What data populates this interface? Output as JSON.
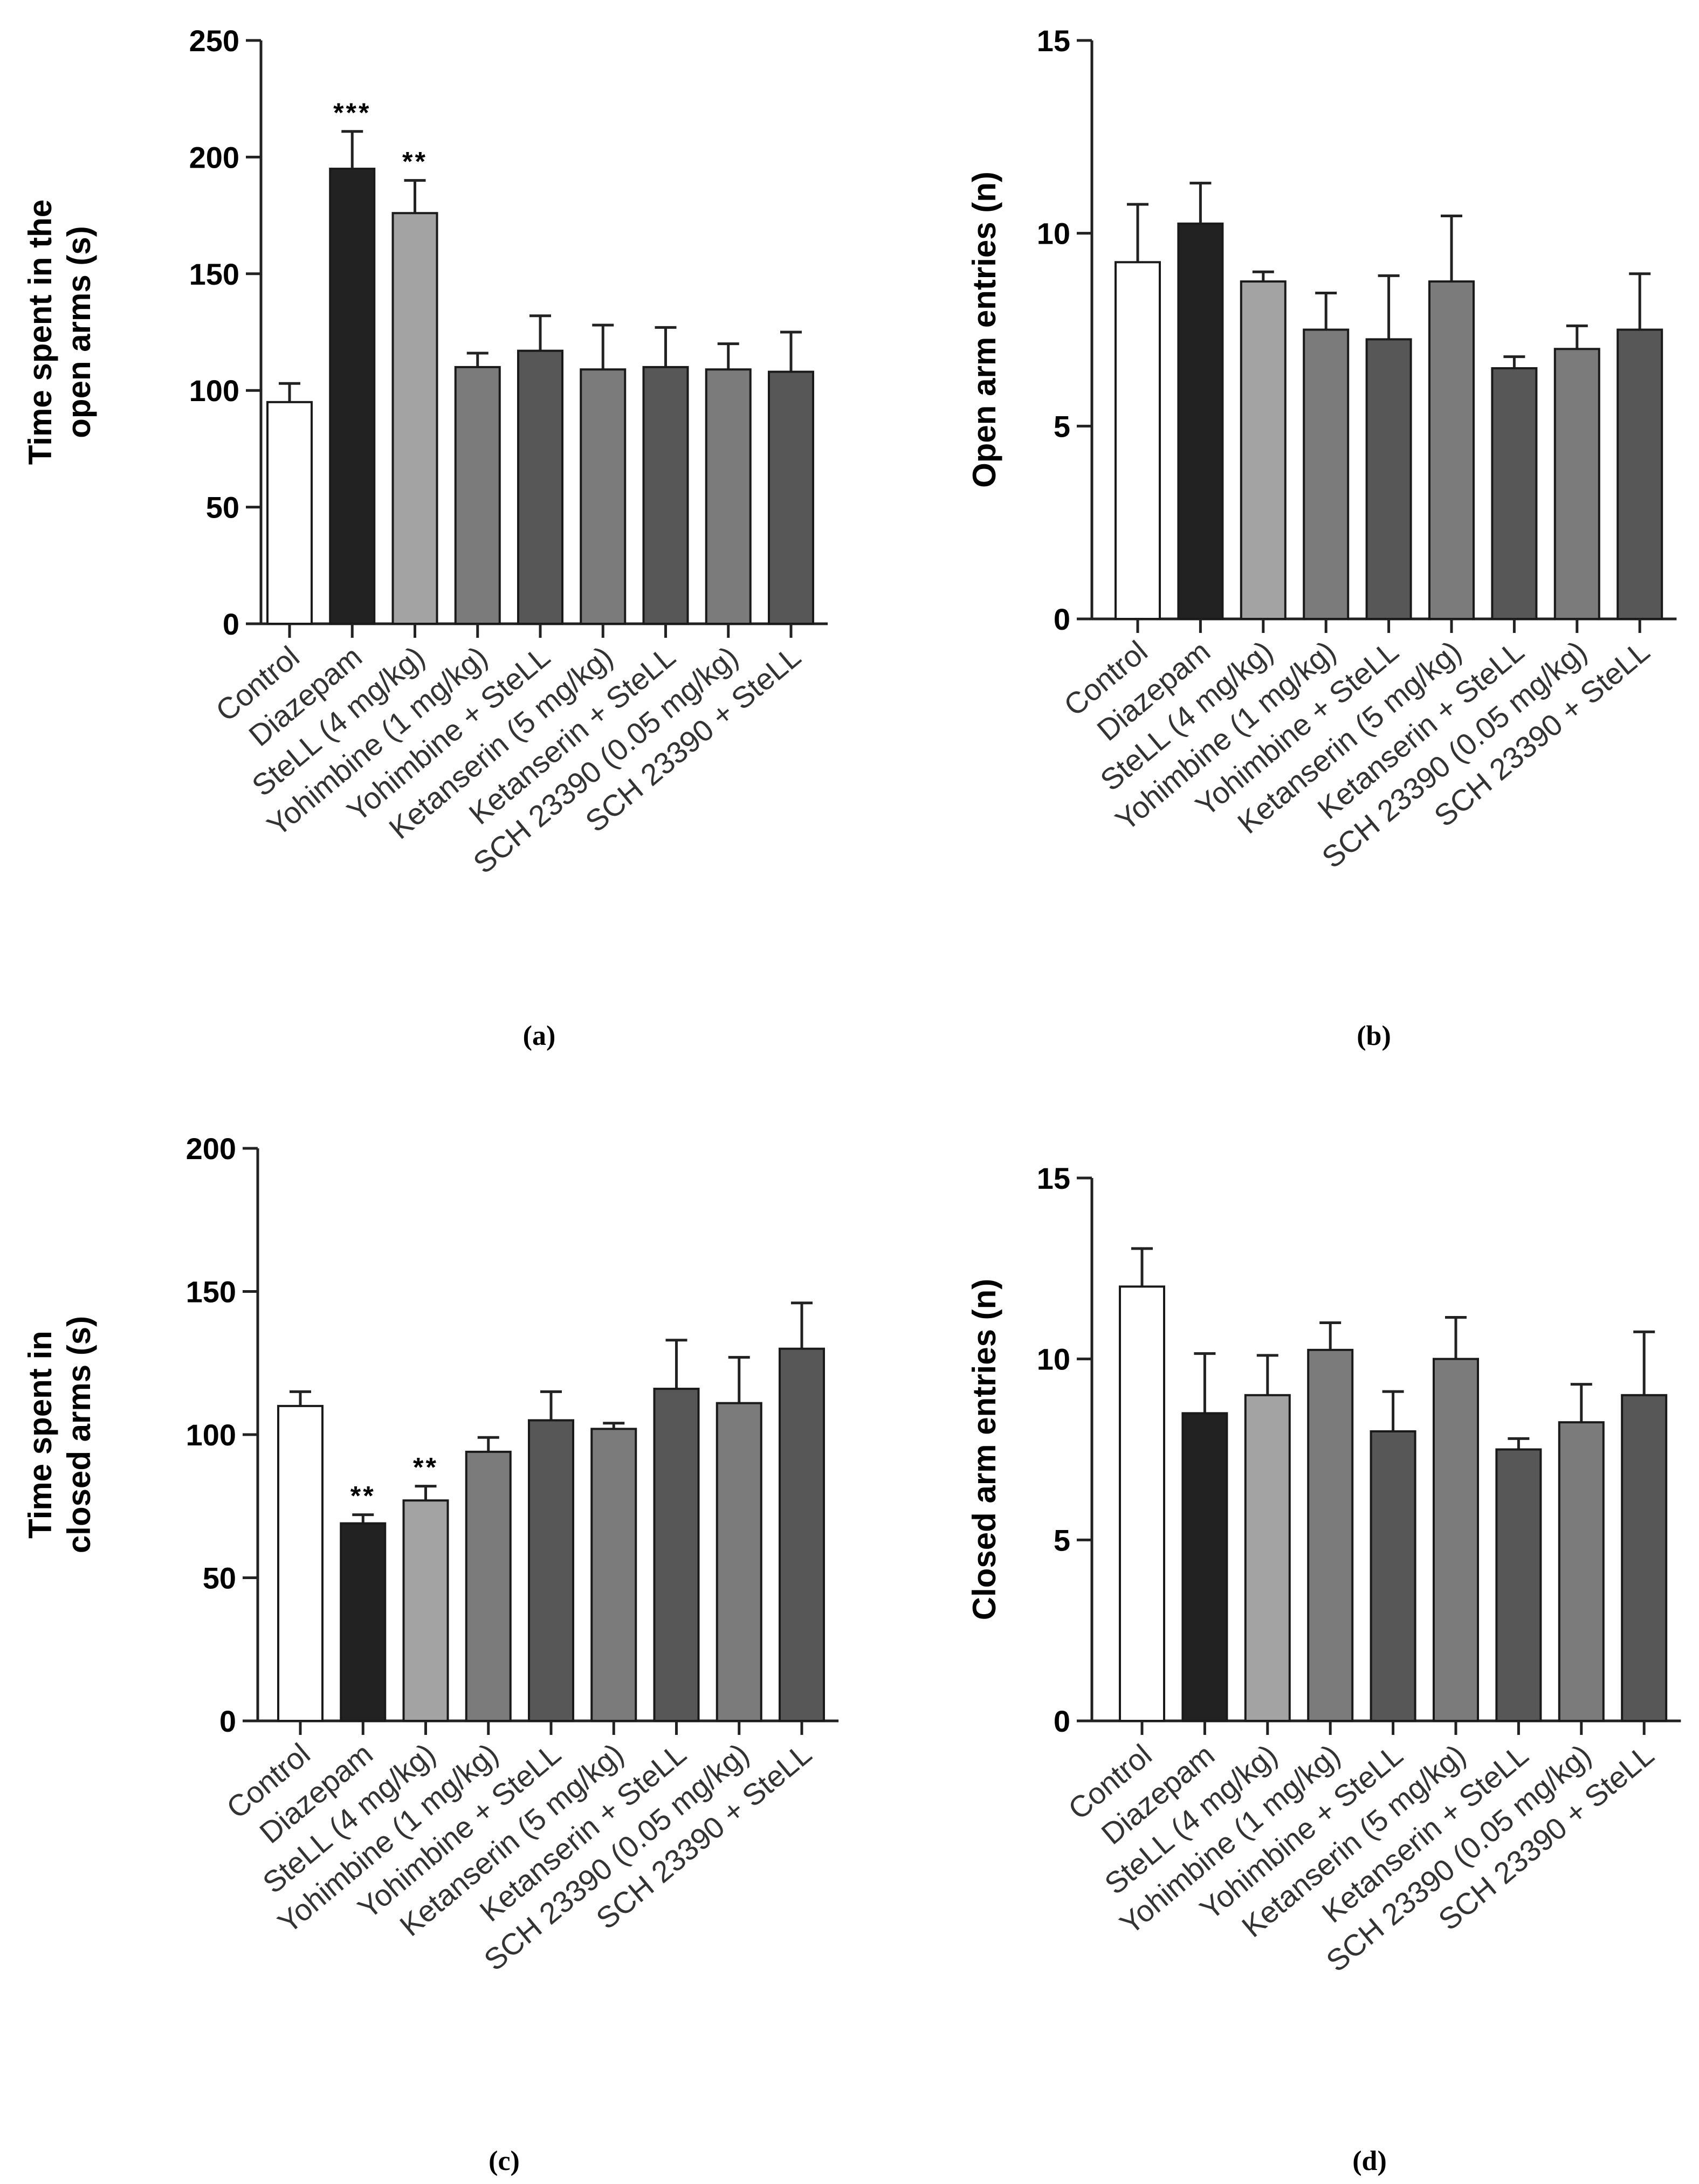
{
  "figure": {
    "background": "#ffffff"
  },
  "categories": [
    "Control",
    "Diazepam",
    "SteLL (4 mg/kg)",
    "Yohimbine (1 mg/kg)",
    "Yohimbine + SteLL",
    "Ketanserin (5 mg/kg)",
    "Ketanserin + SteLL",
    "SCH 23390 (0.05 mg/kg)",
    "SCH 23390 + SteLL"
  ],
  "bar_colors": [
    "#ffffff",
    "#222222",
    "#a3a3a3",
    "#7b7b7b",
    "#575757",
    "#7b7b7b",
    "#575757",
    "#7b7b7b",
    "#575757"
  ],
  "chart_data": [
    {
      "panel": "(a)",
      "type": "bar",
      "ylabel_line1": "Time spent in the",
      "ylabel_line2": "open arms (s)",
      "ylim": [
        0,
        250
      ],
      "yticks": [
        "0",
        "50",
        "100",
        "150",
        "200",
        "250"
      ],
      "values": [
        95,
        195,
        176,
        110,
        117,
        109,
        110,
        109,
        108
      ],
      "errors": [
        8,
        16,
        14,
        6,
        15,
        19,
        17,
        11,
        17
      ],
      "significance": [
        "",
        "***",
        "**",
        "",
        "",
        "",
        "",
        "",
        ""
      ]
    },
    {
      "panel": "(b)",
      "type": "bar",
      "ylabel_line1": "Open arm entries (n)",
      "ylabel_line2": "",
      "ylim": [
        0,
        15
      ],
      "yticks": [
        "0",
        "5",
        "10",
        "15"
      ],
      "values": [
        9.25,
        10.25,
        8.75,
        7.5,
        7.25,
        8.75,
        6.5,
        7.0,
        7.5
      ],
      "errors": [
        1.5,
        1.05,
        0.25,
        0.95,
        1.65,
        1.7,
        0.3,
        0.6,
        1.45
      ],
      "significance": [
        "",
        "",
        "",
        "",
        "",
        "",
        "",
        "",
        ""
      ]
    },
    {
      "panel": "(c)",
      "type": "bar",
      "ylabel_line1": "Time spent in",
      "ylabel_line2": "closed arms (s)",
      "ylim": [
        0,
        200
      ],
      "yticks": [
        "0",
        "50",
        "100",
        "150",
        "200"
      ],
      "values": [
        110,
        69,
        77,
        94,
        105,
        102,
        116,
        111,
        130
      ],
      "errors": [
        5,
        3,
        5,
        5,
        10,
        2,
        17,
        16,
        16
      ],
      "significance": [
        "",
        "**",
        "**",
        "",
        "",
        "",
        "",
        "",
        ""
      ]
    },
    {
      "panel": "(d)",
      "type": "bar",
      "ylabel_line1": "Closed arm entries (n)",
      "ylabel_line2": "",
      "ylim": [
        0,
        15
      ],
      "yticks": [
        "0",
        "5",
        "10",
        "15"
      ],
      "values": [
        12.0,
        8.5,
        9.0,
        10.25,
        8.0,
        10.0,
        7.5,
        8.25,
        9.0
      ],
      "errors": [
        1.05,
        1.65,
        1.1,
        0.75,
        1.1,
        1.15,
        0.3,
        1.05,
        1.75
      ],
      "significance": [
        "",
        "",
        "",
        "",
        "",
        "",
        "",
        "",
        ""
      ]
    }
  ]
}
